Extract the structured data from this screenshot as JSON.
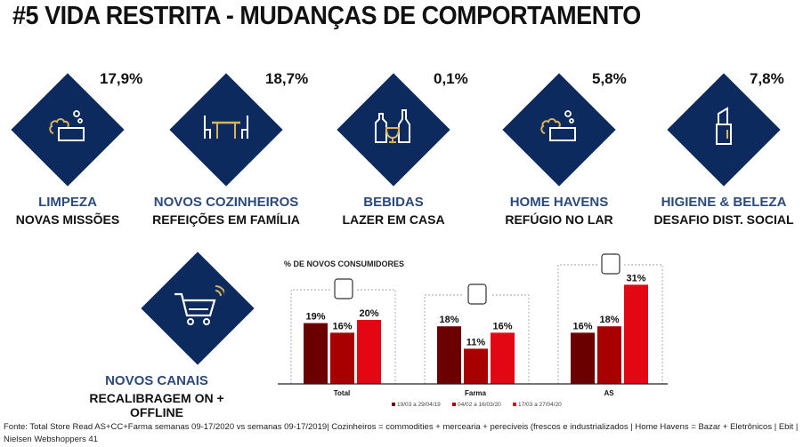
{
  "title": "#5 VIDA RESTRITA - MUDANÇAS DE COMPORTAMENTO",
  "colors": {
    "diamond": "#0d2a5e",
    "icon_gold": "#d9b35a",
    "category_title": "#2c4a7a"
  },
  "categories": [
    {
      "pct": "17,9%",
      "title": "LIMPEZA",
      "subtitle": "NOVAS MISSÕES",
      "icon": "soap-bubbles-icon"
    },
    {
      "pct": "18,7%",
      "title": "NOVOS COZINHEIROS",
      "subtitle": "REFEIÇÕES EM FAMÍLIA",
      "icon": "dining-table-icon"
    },
    {
      "pct": "0,1%",
      "title": "BEBIDAS",
      "subtitle": "LAZER EM CASA",
      "icon": "bottles-glass-icon"
    },
    {
      "pct": "5,8%",
      "title": "HOME HAVENS",
      "subtitle": "REFÚGIO NO LAR",
      "icon": "soap-bubbles-icon"
    },
    {
      "pct": "7,8%",
      "title": "HIGIENE & BELEZA",
      "subtitle": "DESAFIO DIST. SOCIAL",
      "icon": "lipstick-icon"
    }
  ],
  "canais": {
    "title": "NOVOS CANAIS",
    "subtitle": "RECALIBRAGEM ON + OFFLINE",
    "icon": "online-cart-icon"
  },
  "chart_data": {
    "type": "bar",
    "title": "% DE NOVOS CONSUMIDORES",
    "categories": [
      "Total",
      "Farma",
      "AS"
    ],
    "series": [
      {
        "name": "19/03 a 29/04/19",
        "values": [
          19,
          18,
          16
        ],
        "labels": [
          "19%",
          "18%",
          "16%"
        ],
        "color": "#6b0000"
      },
      {
        "name": "04/02 a 16/03/20",
        "values": [
          16,
          11,
          18
        ],
        "labels": [
          "16%",
          "11%",
          "18%"
        ],
        "color": "#a80000"
      },
      {
        "name": "17/03 a 27/04/20",
        "values": [
          20,
          16,
          31
        ],
        "labels": [
          "20%",
          "16%",
          "31%"
        ],
        "color": "#e30613"
      }
    ],
    "group_icons": [
      "person-refresh-icon",
      "medicine-jar-icon",
      "shopping-cart-icon"
    ]
  },
  "footer": "Fonte: Total Store Read AS+CC+Farma semanas 09-17/2020 vs semanas 09-17/2019| Cozinheiros = commodities + mercearia + pereciveis (frescos e industrializados | Home Havens = Bazar + Eletrônicos | Ebit | Nielsen Webshoppers 41"
}
